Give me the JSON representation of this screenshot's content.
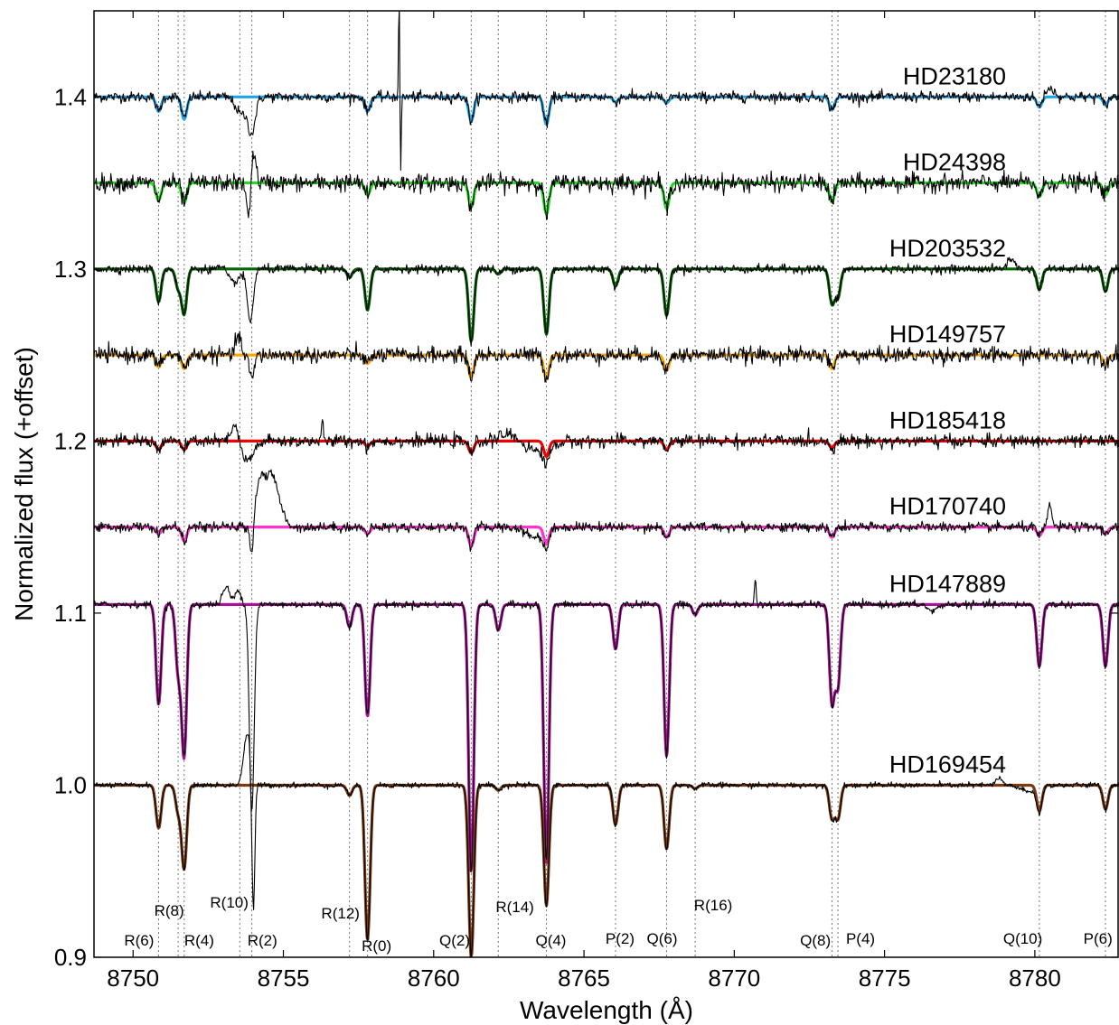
{
  "chart_data": {
    "type": "line",
    "title": "",
    "xlabel": "Wavelength (Å)",
    "ylabel": "Normalized flux (+offset)",
    "xlim": [
      8748.7,
      8782.8
    ],
    "ylim": [
      0.9,
      1.45
    ],
    "x_ticks": [
      8750,
      8755,
      8760,
      8765,
      8770,
      8775,
      8780
    ],
    "y_ticks": [
      0.9,
      1.0,
      1.1,
      1.2,
      1.3,
      1.4
    ],
    "y_tick_labels": [
      "0.9",
      "1.0",
      "1.1",
      "1.2",
      "1.3",
      "1.4"
    ],
    "grid": false,
    "line_positions": [
      {
        "label": "R(6)",
        "wavelength": 8750.85
      },
      {
        "label": "R(8)",
        "wavelength": 8751.5
      },
      {
        "label": "R(4)",
        "wavelength": 8751.7
      },
      {
        "label": "R(10)",
        "wavelength": 8753.55
      },
      {
        "label": "R(2)",
        "wavelength": 8753.95
      },
      {
        "label": "R(12)",
        "wavelength": 8757.2
      },
      {
        "label": "R(0)",
        "wavelength": 8757.8
      },
      {
        "label": "Q(2)",
        "wavelength": 8761.25
      },
      {
        "label": "R(14)",
        "wavelength": 8762.15
      },
      {
        "label": "Q(4)",
        "wavelength": 8763.75
      },
      {
        "label": "P(2)",
        "wavelength": 8766.05
      },
      {
        "label": "Q(6)",
        "wavelength": 8767.75
      },
      {
        "label": "R(16)",
        "wavelength": 8768.7
      },
      {
        "label": "Q(8)",
        "wavelength": 8773.25
      },
      {
        "label": "P(4)",
        "wavelength": 8773.45
      },
      {
        "label": "Q(10)",
        "wavelength": 8780.15
      },
      {
        "label": "P(6)",
        "wavelength": 8782.35
      }
    ],
    "series": [
      {
        "name": "HD23180",
        "offset": 1.4,
        "model_color": "#1ea5e8",
        "noise": 0.0015,
        "absorption": [
          [
            8750.85,
            0.0085
          ],
          [
            8751.7,
            0.013
          ],
          [
            8757.8,
            0.0085
          ],
          [
            8761.25,
            0.014
          ],
          [
            8763.75,
            0.016
          ],
          [
            8766.05,
            0.003
          ],
          [
            8767.75,
            0.0035
          ],
          [
            8773.25,
            0.0075
          ],
          [
            8780.15,
            0.006
          ],
          [
            8782.35,
            0.0045
          ]
        ],
        "features": [
          [
            8753.95,
            -0.02,
            0.12
          ],
          [
            8753.6,
            -0.01,
            0.18
          ],
          [
            8758.85,
            0.06,
            0.02
          ],
          [
            8758.9,
            -0.045,
            0.02
          ],
          [
            8780.5,
            0.005,
            0.15
          ]
        ]
      },
      {
        "name": "HD24398",
        "offset": 1.35,
        "model_color": "#22dd22",
        "noise": 0.0025,
        "absorption": [
          [
            8750.85,
            0.01
          ],
          [
            8751.7,
            0.0115
          ],
          [
            8757.8,
            0.007
          ],
          [
            8761.25,
            0.014
          ],
          [
            8763.75,
            0.018
          ],
          [
            8767.75,
            0.015
          ],
          [
            8773.25,
            0.011
          ],
          [
            8780.15,
            0.008
          ],
          [
            8782.35,
            0.007
          ]
        ],
        "features": [
          [
            8754.0,
            0.02,
            0.08
          ],
          [
            8753.85,
            -0.02,
            0.08
          ]
        ]
      },
      {
        "name": "HD203532",
        "offset": 1.3,
        "model_color": "#006600",
        "noise": 0.0012,
        "absorption": [
          [
            8750.85,
            0.019
          ],
          [
            8751.5,
            0.011
          ],
          [
            8751.7,
            0.026
          ],
          [
            8757.2,
            0.005
          ],
          [
            8757.8,
            0.024
          ],
          [
            8761.25,
            0.042
          ],
          [
            8762.15,
            0.003
          ],
          [
            8763.75,
            0.038
          ],
          [
            8766.05,
            0.01
          ],
          [
            8767.75,
            0.027
          ],
          [
            8773.25,
            0.02
          ],
          [
            8773.45,
            0.016
          ],
          [
            8780.15,
            0.012
          ],
          [
            8782.35,
            0.013
          ]
        ],
        "features": [
          [
            8753.9,
            -0.03,
            0.1
          ],
          [
            8753.3,
            -0.008,
            0.25
          ],
          [
            8753.0,
            0.004,
            0.15
          ],
          [
            8779.2,
            0.006,
            0.12
          ]
        ]
      },
      {
        "name": "HD149757",
        "offset": 1.25,
        "model_color": "#f5a800",
        "noise": 0.0022,
        "absorption": [
          [
            8750.85,
            0.007
          ],
          [
            8751.7,
            0.008
          ],
          [
            8757.8,
            0.005
          ],
          [
            8761.25,
            0.013
          ],
          [
            8763.75,
            0.014
          ],
          [
            8767.75,
            0.009
          ],
          [
            8773.25,
            0.008
          ],
          [
            8782.35,
            0.005
          ]
        ],
        "features": [
          [
            8753.5,
            0.012,
            0.08
          ],
          [
            8753.95,
            -0.014,
            0.08
          ]
        ]
      },
      {
        "name": "HD185418",
        "offset": 1.2,
        "model_color": "#ee0000",
        "noise": 0.0018,
        "absorption": [
          [
            8750.85,
            0.005
          ],
          [
            8751.7,
            0.005
          ],
          [
            8757.8,
            0.003
          ],
          [
            8761.25,
            0.007
          ],
          [
            8763.75,
            0.009
          ],
          [
            8767.75,
            0.005
          ],
          [
            8773.25,
            0.004
          ]
        ],
        "features": [
          [
            8753.4,
            0.01,
            0.12
          ],
          [
            8753.8,
            -0.012,
            0.2
          ],
          [
            8756.3,
            0.01,
            0.03
          ],
          [
            8763.5,
            -0.006,
            0.4
          ],
          [
            8762.5,
            0.004,
            0.3
          ]
        ]
      },
      {
        "name": "HD170740",
        "offset": 1.15,
        "model_color": "#ff33cc",
        "noise": 0.0014,
        "absorption": [
          [
            8750.85,
            0.004
          ],
          [
            8751.7,
            0.008
          ],
          [
            8757.8,
            0.004
          ],
          [
            8761.25,
            0.011
          ],
          [
            8763.75,
            0.01
          ],
          [
            8767.75,
            0.006
          ],
          [
            8773.25,
            0.006
          ],
          [
            8780.15,
            0.005
          ],
          [
            8782.35,
            0.004
          ]
        ],
        "features": [
          [
            8754.6,
            0.03,
            0.25
          ],
          [
            8754.2,
            0.02,
            0.15
          ],
          [
            8753.95,
            -0.02,
            0.06
          ],
          [
            8780.5,
            0.014,
            0.06
          ],
          [
            8763.4,
            -0.006,
            0.3
          ]
        ]
      },
      {
        "name": "HD147889",
        "offset": 1.105,
        "model_color": "#aa1199",
        "noise": 0.001,
        "absorption": [
          [
            8750.85,
            0.058
          ],
          [
            8751.5,
            0.038
          ],
          [
            8751.7,
            0.087
          ],
          [
            8757.2,
            0.013
          ],
          [
            8757.8,
            0.065
          ],
          [
            8761.25,
            0.155
          ],
          [
            8762.15,
            0.015
          ],
          [
            8763.75,
            0.15
          ],
          [
            8766.05,
            0.026
          ],
          [
            8767.75,
            0.088
          ],
          [
            8768.7,
            0.006
          ],
          [
            8773.25,
            0.056
          ],
          [
            8773.45,
            0.046
          ],
          [
            8780.15,
            0.036
          ],
          [
            8782.35,
            0.036
          ]
        ],
        "features": [
          [
            8753.1,
            0.01,
            0.12
          ],
          [
            8753.5,
            0.008,
            0.1
          ],
          [
            8753.95,
            -0.12,
            0.08
          ],
          [
            8770.7,
            0.014,
            0.03
          ],
          [
            8776.6,
            -0.004,
            0.15
          ]
        ]
      },
      {
        "name": "HD169454",
        "offset": 1.0,
        "model_color": "#7a3b12",
        "noise": 0.0008,
        "absorption": [
          [
            8750.85,
            0.025
          ],
          [
            8751.5,
            0.015
          ],
          [
            8751.7,
            0.048
          ],
          [
            8757.2,
            0.006
          ],
          [
            8757.8,
            0.09
          ],
          [
            8761.25,
            0.1
          ],
          [
            8762.15,
            0.003
          ],
          [
            8763.75,
            0.07
          ],
          [
            8766.05,
            0.023
          ],
          [
            8767.75,
            0.037
          ],
          [
            8768.7,
            0.002
          ],
          [
            8773.25,
            0.019
          ],
          [
            8773.45,
            0.019
          ],
          [
            8780.15,
            0.015
          ],
          [
            8782.35,
            0.014
          ]
        ],
        "features": [
          [
            8753.8,
            0.03,
            0.12
          ],
          [
            8754.0,
            -0.08,
            0.05
          ],
          [
            8779.8,
            -0.004,
            0.25
          ],
          [
            8778.8,
            0.004,
            0.1
          ]
        ]
      }
    ]
  }
}
